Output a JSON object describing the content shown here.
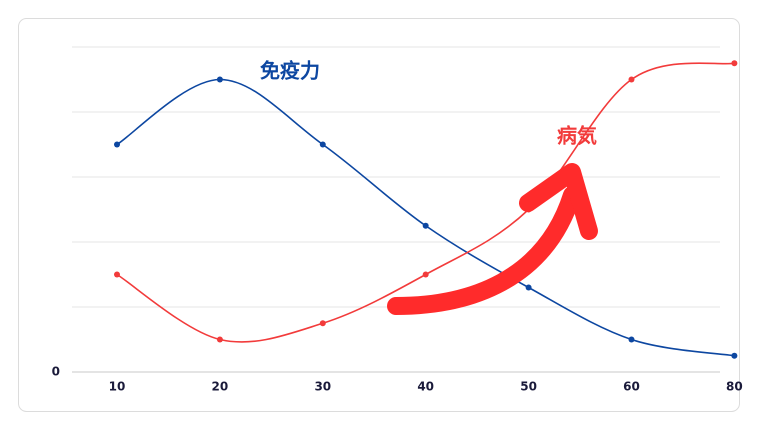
{
  "chart_data": {
    "type": "line",
    "categories": [
      "10",
      "20",
      "30",
      "40",
      "50",
      "60",
      "80"
    ],
    "series": [
      {
        "name": "免疫力",
        "color": "#0d47a1",
        "values": [
          3.5,
          4.5,
          3.5,
          2.25,
          1.3,
          0.5,
          0.25
        ]
      },
      {
        "name": "病気",
        "color": "#f23b3b",
        "values": [
          1.5,
          0.5,
          0.75,
          1.5,
          2.5,
          4.5,
          4.75
        ]
      }
    ],
    "ylim": [
      0,
      5
    ],
    "yticks": [
      0
    ],
    "ygrid": [
      1,
      2,
      3,
      4,
      5
    ],
    "grid": true
  }
}
